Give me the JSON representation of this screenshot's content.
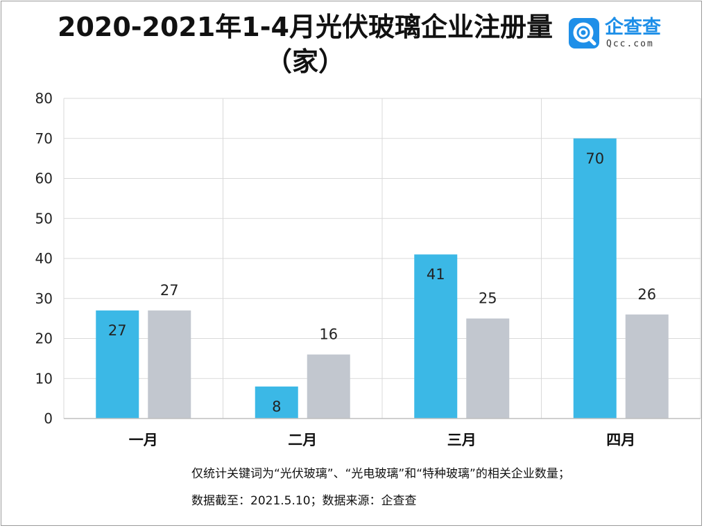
{
  "header": {
    "title_line1": "2020-2021年1-4月光伏玻璃企业注册量",
    "title_line2": "（家）"
  },
  "logo": {
    "name": "企查查",
    "domain": "Qcc.com",
    "icon": "magnifier-q-icon",
    "color": "#1e8fe8"
  },
  "chart_data": {
    "type": "bar",
    "categories": [
      "一月",
      "二月",
      "三月",
      "四月"
    ],
    "series": [
      {
        "values": [
          27,
          8,
          41,
          70
        ],
        "color": "#3bb8e6"
      },
      {
        "values": [
          27,
          16,
          25,
          26
        ],
        "color": "#c2c7cf"
      }
    ],
    "ylim": [
      0,
      80
    ],
    "yticks": [
      0,
      10,
      20,
      30,
      40,
      50,
      60,
      70,
      80
    ],
    "grid": true,
    "legend": "none"
  },
  "footnotes": {
    "line1": "仅统计关键词为“光伏玻璃”、“光电玻璃”和“特种玻璃”的相关企业数量；",
    "line2": "数据截至：2021.5.10；数据来源：企查查"
  }
}
